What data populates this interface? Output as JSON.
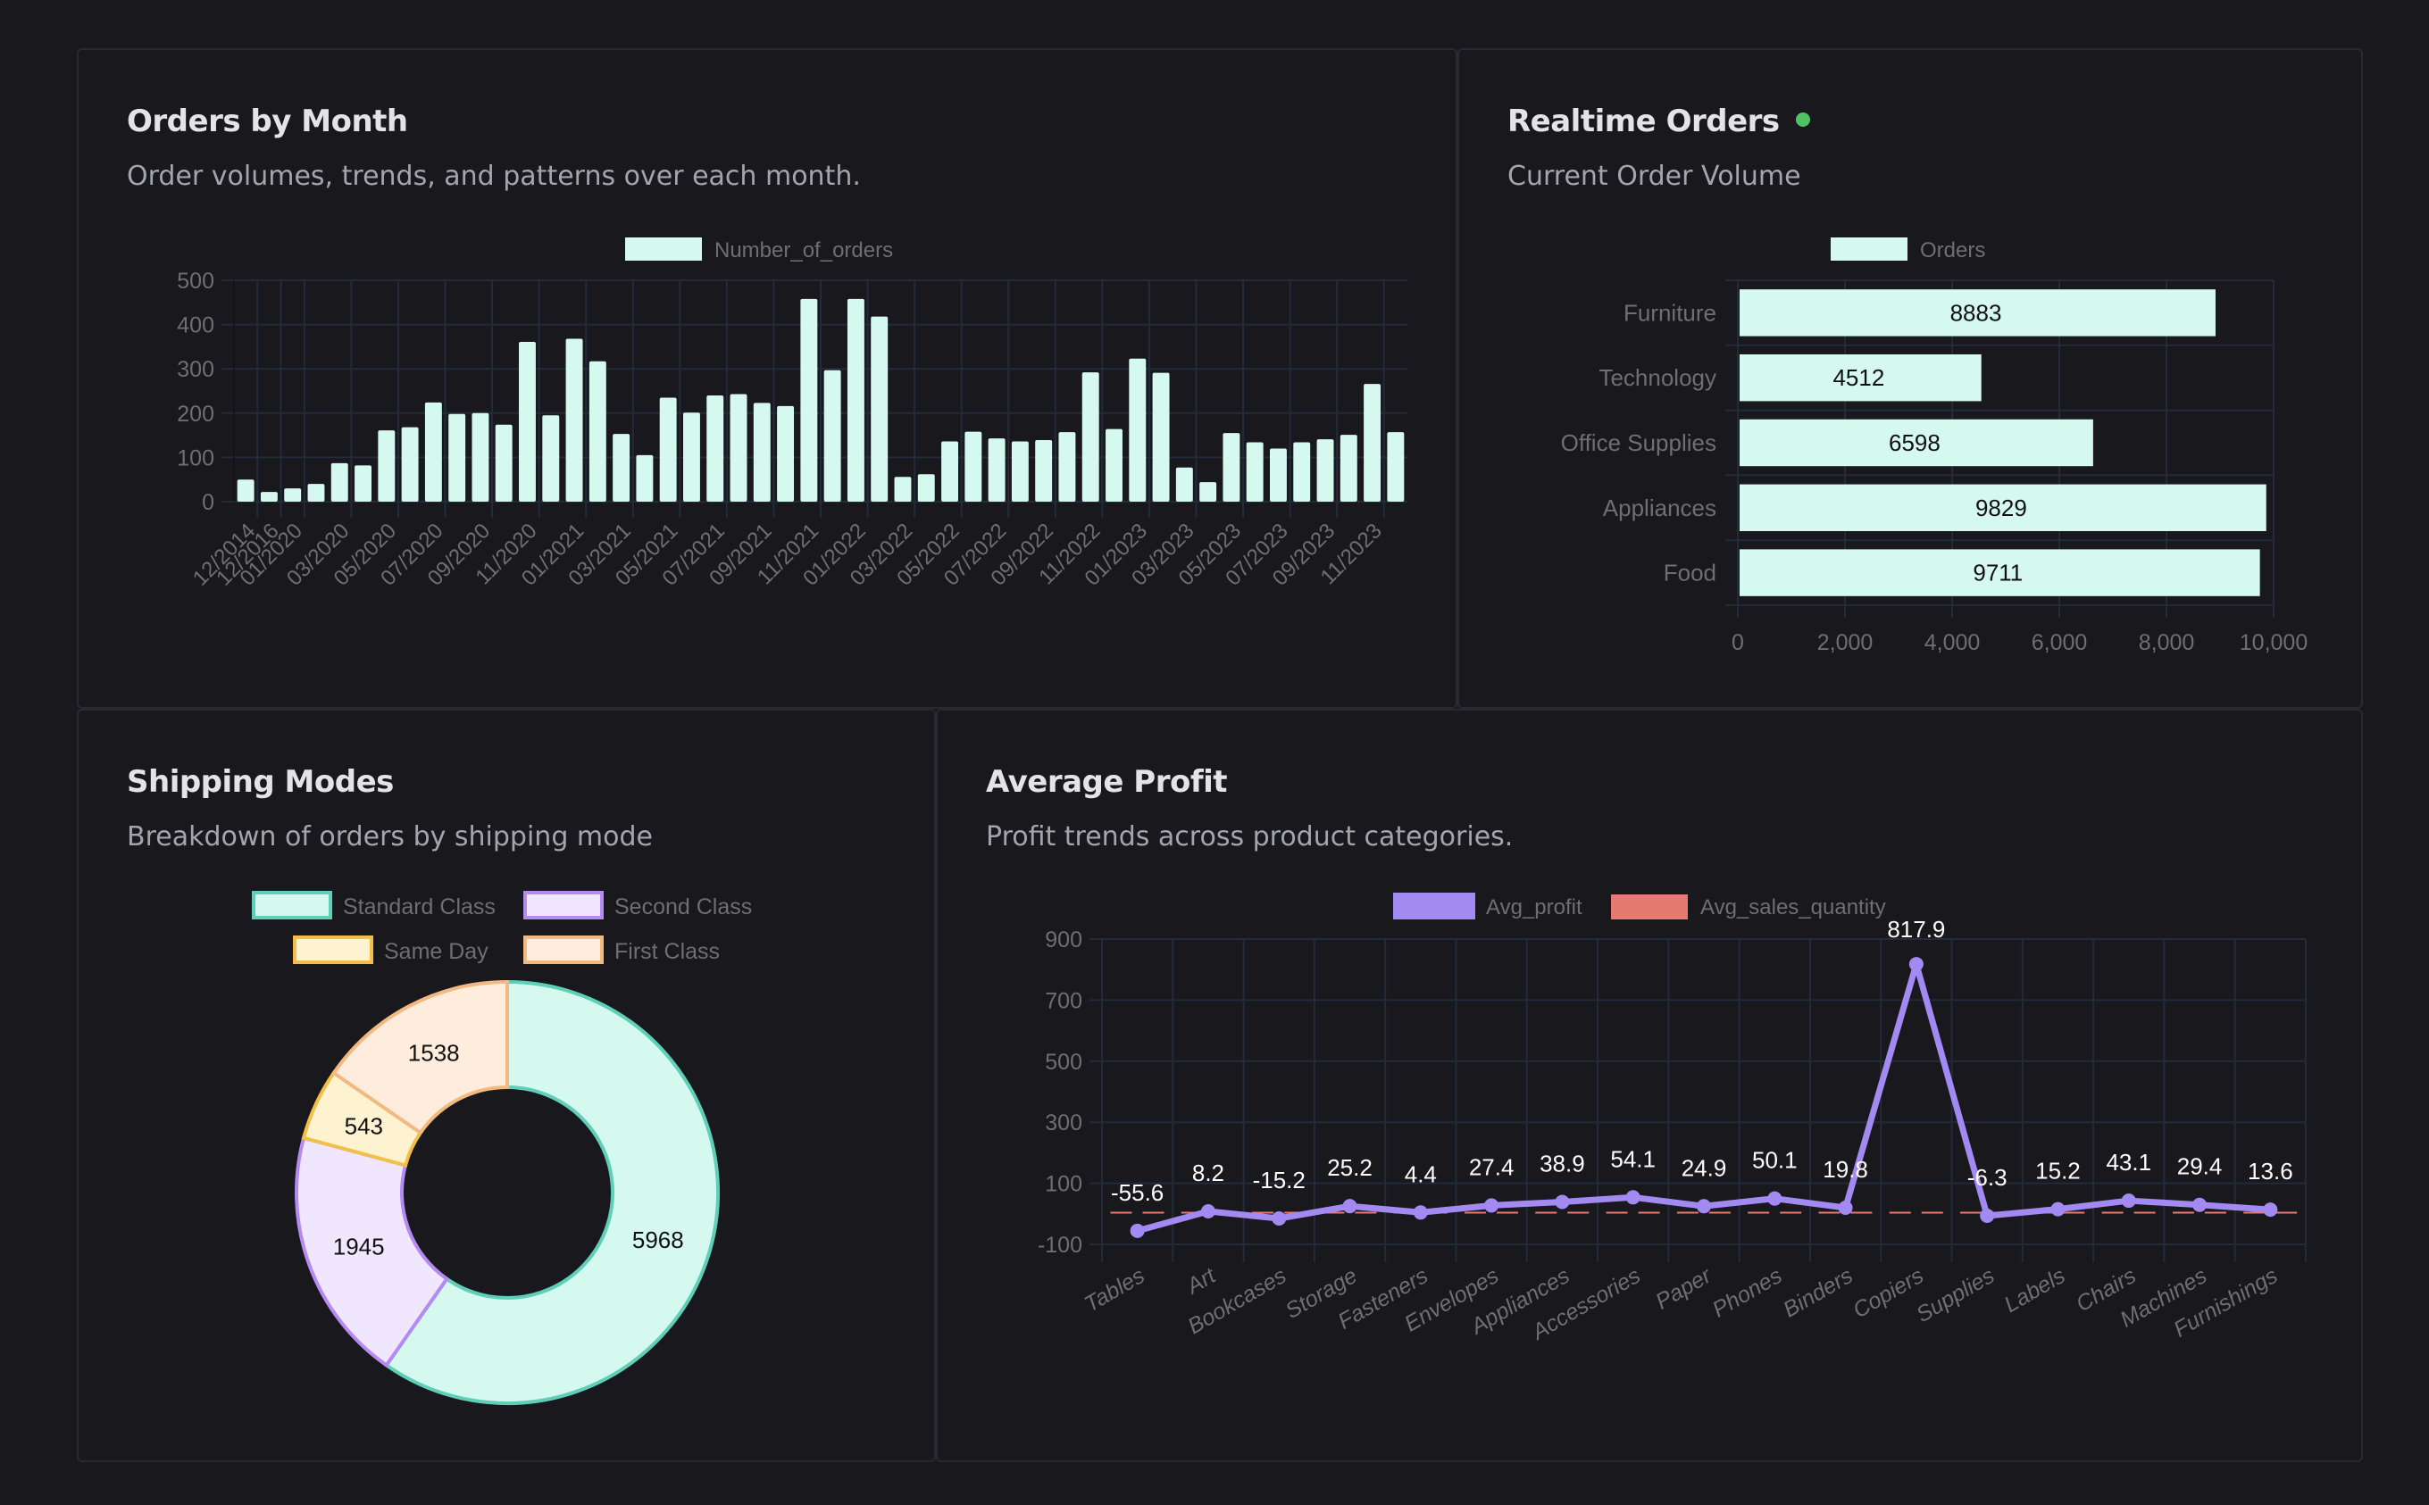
{
  "theme": {
    "bar_fill": "#d5f8ef",
    "grid": "#222b3a",
    "tick_text": "#6e6e73",
    "live_dot": "#4fc264",
    "profit_line": "#a38af3",
    "sales_qty": "#e57a72",
    "data_label_dark": "#111111",
    "data_label_light": "#ffffff"
  },
  "cards": {
    "orders_by_month": {
      "title": "Orders by Month",
      "subtitle": "Order volumes, trends, and patterns over each month."
    },
    "realtime_orders": {
      "title": "Realtime Orders",
      "subtitle": "Current Order Volume",
      "status": "live"
    },
    "shipping_modes": {
      "title": "Shipping Modes",
      "subtitle": "Breakdown of orders by shipping mode"
    },
    "average_profit": {
      "title": "Average Profit",
      "subtitle": "Profit trends across product categories."
    }
  },
  "chart_data": [
    {
      "id": "orders_by_month",
      "type": "bar",
      "legend": [
        "Number_of_orders"
      ],
      "legend_position": "top",
      "categories": [
        "12/2014",
        "12/2016",
        "01/2020",
        "02/2020",
        "03/2020",
        "04/2020",
        "05/2020",
        "06/2020",
        "07/2020",
        "08/2020",
        "09/2020",
        "10/2020",
        "11/2020",
        "12/2020",
        "01/2021",
        "02/2021",
        "03/2021",
        "04/2021",
        "05/2021",
        "06/2021",
        "07/2021",
        "08/2021",
        "09/2021",
        "10/2021",
        "11/2021",
        "12/2021",
        "01/2022",
        "02/2022",
        "03/2022",
        "04/2022",
        "05/2022",
        "06/2022",
        "07/2022",
        "08/2022",
        "09/2022",
        "10/2022",
        "11/2022",
        "12/2022",
        "01/2023",
        "02/2023",
        "03/2023",
        "04/2023",
        "05/2023",
        "06/2023",
        "07/2023",
        "08/2023",
        "09/2023",
        "10/2023",
        "11/2023",
        "12/2023"
      ],
      "tick_labels": [
        "12/2014",
        "12/2016",
        "01/2020",
        "03/2020",
        "05/2020",
        "07/2020",
        "09/2020",
        "11/2020",
        "01/2021",
        "03/2021",
        "05/2021",
        "07/2021",
        "09/2021",
        "11/2021",
        "01/2022",
        "03/2022",
        "05/2022",
        "07/2022",
        "09/2022",
        "11/2022",
        "01/2023",
        "03/2023",
        "05/2023",
        "07/2023",
        "09/2023",
        "11/2023"
      ],
      "values": [
        50,
        22,
        30,
        40,
        87,
        82,
        161,
        168,
        224,
        198,
        200,
        174,
        361,
        195,
        368,
        317,
        153,
        105,
        235,
        201,
        240,
        243,
        223,
        216,
        458,
        297,
        458,
        418,
        56,
        62,
        136,
        158,
        143,
        136,
        139,
        157,
        292,
        164,
        323,
        291,
        77,
        44,
        155,
        134,
        120,
        134,
        141,
        151,
        266,
        157
      ],
      "yticks": [
        0,
        100,
        200,
        300,
        400,
        500
      ],
      "ylim": [
        0,
        500
      ],
      "grid": true,
      "xlabel": "",
      "ylabel": ""
    },
    {
      "id": "realtime_orders",
      "type": "bar",
      "orientation": "horizontal",
      "legend": [
        "Orders"
      ],
      "legend_position": "top",
      "categories": [
        "Furniture",
        "Technology",
        "Office Supplies",
        "Appliances",
        "Food"
      ],
      "values": [
        8883,
        4512,
        6598,
        9829,
        9711
      ],
      "data_labels": [
        "8883",
        "4512",
        "6598",
        "9829",
        "9711"
      ],
      "xticks": [
        "0",
        "2,000",
        "4,000",
        "6,000",
        "8,000",
        "10,000"
      ],
      "xlim": [
        0,
        10000
      ],
      "grid": true
    },
    {
      "id": "shipping_modes",
      "type": "pie",
      "variant": "doughnut",
      "legend_position": "top",
      "labels": [
        "Standard Class",
        "Second Class",
        "Same Day",
        "First Class"
      ],
      "values": [
        5968,
        1945,
        543,
        1538
      ],
      "fill_colors": [
        "#d5f8ef",
        "#f0e6fd",
        "#fef3d1",
        "#feeddc"
      ],
      "border_colors": [
        "#5fcfb7",
        "#b58af3",
        "#f2c049",
        "#f2b980"
      ]
    },
    {
      "id": "average_profit",
      "type": "line",
      "legend": [
        "Avg_profit",
        "Avg_sales_quantity"
      ],
      "legend_position": "top",
      "categories": [
        "Tables",
        "Art",
        "Bookcases",
        "Storage",
        "Fasteners",
        "Envelopes",
        "Appliances",
        "Accessories",
        "Paper",
        "Phones",
        "Binders",
        "Copiers",
        "Supplies",
        "Labels",
        "Chairs",
        "Machines",
        "Furnishings"
      ],
      "series": [
        {
          "name": "Avg_profit",
          "values": [
            -55.6,
            8.2,
            -15.2,
            25.2,
            4.4,
            27.4,
            38.9,
            54.1,
            24.9,
            50.1,
            19.8,
            817.9,
            -6.3,
            15.2,
            43.1,
            29.4,
            13.6
          ],
          "data_labels": [
            "-55.6",
            "8.2",
            "-15.2",
            "25.2",
            "4.4",
            "27.4",
            "38.9",
            "54.1",
            "24.9",
            "50.1",
            "19.8",
            "817.9",
            "-6.3",
            "15.2",
            "43.1",
            "29.4",
            "13.6"
          ]
        },
        {
          "name": "Avg_sales_quantity",
          "values": [
            3.8,
            3.8,
            3.8,
            3.8,
            3.8,
            3.8,
            3.8,
            3.8,
            3.8,
            3.8,
            3.8,
            3.8,
            3.8,
            3.8,
            3.8,
            3.8,
            3.8
          ],
          "style": "dashed"
        }
      ],
      "yticks": [
        -100,
        100,
        300,
        500,
        700,
        900
      ],
      "ylim": [
        -140,
        900
      ],
      "grid": true
    }
  ]
}
